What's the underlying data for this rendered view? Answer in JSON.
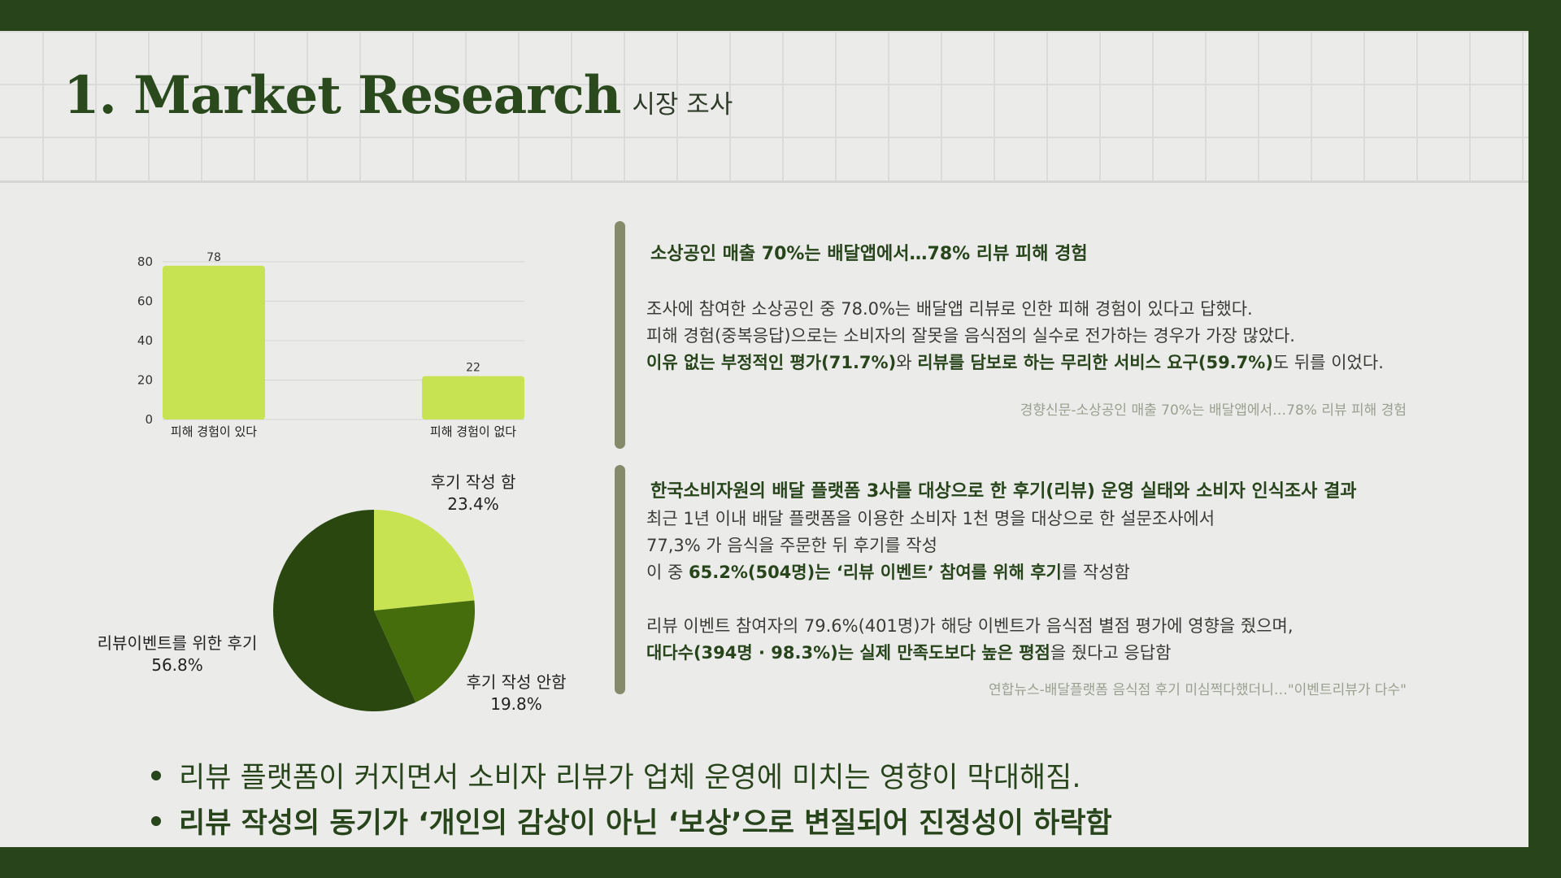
{
  "header": {
    "title_en": "1. Market Research",
    "title_ko": "시장 조사"
  },
  "chart_data": [
    {
      "type": "bar",
      "categories": [
        "피해 경험이 있다",
        "피해 경험이 없다"
      ],
      "values": [
        78,
        22
      ],
      "ylim": [
        0,
        80
      ],
      "yticks": [
        "0",
        "20",
        "40",
        "60",
        "80"
      ],
      "data_labels": [
        "78",
        "22"
      ],
      "grid": true,
      "color": "#c7e352"
    },
    {
      "type": "pie",
      "slices": [
        {
          "label": "후기 작성 함",
          "value": 23.4,
          "value_label": "23.4%",
          "color": "#c7e352"
        },
        {
          "label": "후기 작성 안함",
          "value": 19.8,
          "value_label": "19.8%",
          "color": "#456d0b"
        },
        {
          "label": "리뷰이벤트를 위한 후기",
          "value": 56.8,
          "value_label": "56.8%",
          "color": "#2a4710"
        }
      ]
    }
  ],
  "article1": {
    "heading": "소상공인 매출 70%는 배달앱에서…78% 리뷰 피해 경험",
    "line1": "조사에 참여한 소상공인 중 78.0%는 배달앱 리뷰로 인한 피해 경험이 있다고 답했다.",
    "line2": "피해 경험(중복응답)으로는 소비자의 잘못을 음식점의 실수로 전가하는 경우가 가장 많았다.",
    "line3_bold1": "이유 없는 부정적인 평가(71.7%)",
    "line3_mid": "와 ",
    "line3_bold2": "리뷰를 담보로 하는 무리한 서비스 요구(59.7%)",
    "line3_end": "도 뒤를 이었다.",
    "source": "경향신문-소상공인 매출 70%는 배달앱에서…78% 리뷰 피해 경험"
  },
  "article2": {
    "heading": "한국소비자원의 배달 플랫폼 3사를 대상으로 한 후기(리뷰) 운영 실태와 소비자 인식조사 결과",
    "line1": "최근 1년 이내 배달 플랫폼을 이용한 소비자 1천 명을 대상으로 한 설문조사에서",
    "line2": "77,3% 가 음식을 주문한 뒤 후기를 작성",
    "line3_pre": "이 중 ",
    "line3_bold": "65.2%(504명)는 ‘리뷰 이벤트’ 참여를 위해 후기",
    "line3_end": "를 작성함",
    "line4": "리뷰 이벤트 참여자의 79.6%(401명)가 해당 이벤트가 음식점 별점 평가에 영향을 줬으며,",
    "line5_bold": "대다수(394명 · 98.3%)는 실제 만족도보다 높은 평점",
    "line5_end": "을 줬다고 응답함",
    "source": "연합뉴스-배달플랫폼 음식점 후기 미심쩍다했더니…\"이벤트리뷰가 다수\""
  },
  "bullets": [
    "리뷰 플랫폼이 커지면서 소비자 리뷰가 업체 운영에 미치는 영향이 막대해짐.",
    "리뷰 작성의 동기가 ‘개인의 감상이 아닌 ‘보상’으로 변질되어 진정성이 하락함"
  ],
  "colors": {
    "frame": "#27441b",
    "panel": "#ebebea",
    "accent": "#c7e352",
    "text_dark": "#27441b"
  }
}
